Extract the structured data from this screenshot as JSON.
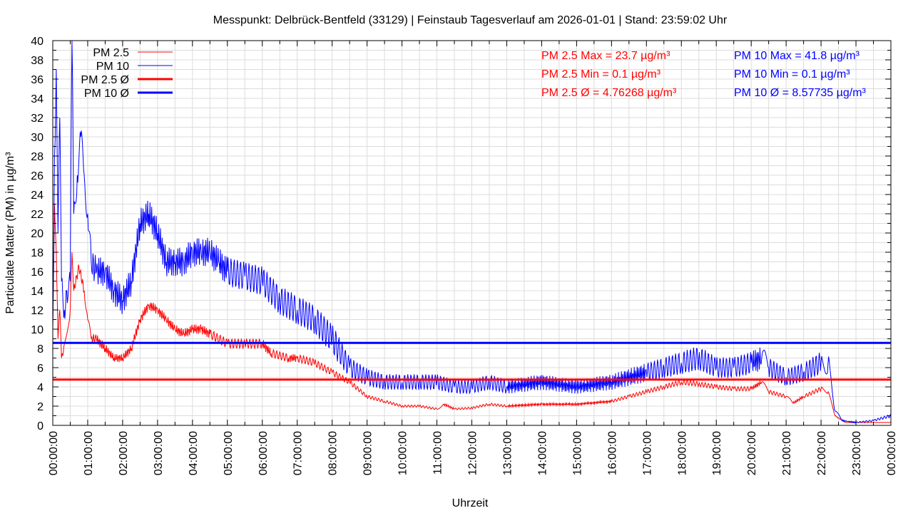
{
  "chart_data": {
    "type": "line",
    "title": "Messpunkt: Delbrück-Bentfeld (33129) | Feinstaub Tagesverlauf am 2026-01-01 | Stand: 23:59:02 Uhr",
    "xlabel": "Uhrzeit",
    "ylabel": "Particulate Matter (PM) in µg/m³",
    "xlim": [
      0,
      24
    ],
    "ylim": [
      0,
      40
    ],
    "grid": true,
    "legend_position": "top-left",
    "x_tick_labels": [
      "00:00:00",
      "01:00:00",
      "02:00:00",
      "03:00:00",
      "04:00:00",
      "05:00:00",
      "06:00:00",
      "07:00:00",
      "08:00:00",
      "09:00:00",
      "10:00:00",
      "11:00:00",
      "12:00:00",
      "13:00:00",
      "14:00:00",
      "15:00:00",
      "16:00:00",
      "17:00:00",
      "18:00:00",
      "19:00:00",
      "20:00:00",
      "21:00:00",
      "22:00:00",
      "23:00:00",
      "00:00:00"
    ],
    "y_tick_labels": [
      "0",
      "2",
      "4",
      "6",
      "8",
      "10",
      "12",
      "14",
      "16",
      "18",
      "20",
      "22",
      "24",
      "26",
      "28",
      "30",
      "32",
      "34",
      "36",
      "38",
      "40"
    ],
    "series": [
      {
        "name": "PM 2.5",
        "color": "#ff0000",
        "x": [
          0,
          0.05,
          0.1,
          0.15,
          0.2,
          0.25,
          0.3,
          0.5,
          0.55,
          0.6,
          0.75,
          0.9,
          1.0,
          1.1,
          1.25,
          1.5,
          1.75,
          2.0,
          2.25,
          2.5,
          2.75,
          3.0,
          3.25,
          3.5,
          3.75,
          4.0,
          4.25,
          4.5,
          5.0,
          5.5,
          6.0,
          6.25,
          6.75,
          7.0,
          7.5,
          8.0,
          8.5,
          9.0,
          9.5,
          10,
          10.5,
          11,
          11.2,
          11.5,
          12,
          12.5,
          13,
          14,
          15,
          16,
          16.5,
          17,
          17.5,
          18,
          18.5,
          19,
          19.5,
          20,
          20.3,
          20.5,
          21,
          21.2,
          21.5,
          22,
          22.2,
          22.4,
          22.7,
          23,
          23.5,
          24
        ],
        "values": [
          10,
          23,
          18,
          9,
          12,
          7,
          7.5,
          12,
          18,
          14,
          16.5,
          14,
          11,
          9,
          9,
          8,
          7,
          7,
          8,
          11,
          12.5,
          12,
          11,
          10,
          9.5,
          10,
          10,
          9.5,
          8.5,
          8.5,
          8.5,
          7.5,
          7,
          7,
          6.5,
          5.5,
          4.5,
          3,
          2.5,
          2,
          2,
          1.7,
          2.2,
          1.7,
          1.8,
          2.2,
          2,
          2.2,
          2.2,
          2.5,
          3,
          3.5,
          4,
          4.5,
          4.3,
          4,
          3.8,
          3.8,
          4.5,
          3.5,
          3,
          2.3,
          3,
          3.8,
          3.5,
          1,
          0.3,
          0.3,
          0.3,
          0.3
        ]
      },
      {
        "name": "PM 10",
        "color": "#0000ff",
        "x": [
          0,
          0.05,
          0.1,
          0.15,
          0.2,
          0.25,
          0.33,
          0.4,
          0.5,
          0.55,
          0.6,
          0.7,
          0.8,
          0.9,
          1.0,
          1.1,
          1.25,
          1.5,
          1.75,
          2.0,
          2.25,
          2.5,
          2.75,
          3.0,
          3.25,
          3.5,
          3.75,
          4.0,
          4.25,
          4.5,
          4.75,
          5.0,
          5.5,
          6.0,
          6.5,
          7.0,
          7.5,
          8.0,
          8.5,
          9.0,
          9.5,
          10,
          10.5,
          11,
          11.5,
          12,
          12.5,
          13,
          14,
          15,
          16,
          17,
          17.5,
          18,
          18.5,
          19,
          19.5,
          20,
          20.3,
          20.5,
          21,
          21.5,
          22,
          22.2,
          22.4,
          22.6,
          23,
          23.5,
          24
        ],
        "values": [
          10,
          28,
          37,
          20,
          32,
          15,
          12,
          14,
          15,
          41.8,
          22,
          26,
          30,
          26,
          22,
          17,
          16,
          16,
          14,
          13,
          15,
          21,
          22,
          20,
          17,
          17,
          17,
          18,
          18,
          18,
          17,
          16,
          15.5,
          15,
          13,
          12,
          11,
          9,
          6,
          5,
          4.5,
          4.5,
          4.5,
          4.5,
          4,
          4,
          4.5,
          4,
          4.5,
          4,
          4.5,
          5.5,
          6,
          6.5,
          7,
          6,
          6,
          6.5,
          7,
          6,
          5,
          5.5,
          6.5,
          6.5,
          1.5,
          0.5,
          0.3,
          0.5,
          1
        ]
      },
      {
        "name": "PM 2.5 Ø",
        "color": "#ff0000",
        "constant": 4.76268
      },
      {
        "name": "PM 10 Ø",
        "color": "#0000ff",
        "constant": 8.57735
      }
    ],
    "annotations": {
      "pm25": [
        "PM 2.5 Max = 23.7 µg/m³",
        "PM 2.5 Min = 0.1 µg/m³",
        "PM 2.5 Ø = 4.76268 µg/m³"
      ],
      "pm10": [
        "PM 10 Max = 41.8 µg/m³",
        "PM 10 Min = 0.1 µg/m³",
        "PM 10 Ø = 8.57735 µg/m³"
      ]
    }
  }
}
